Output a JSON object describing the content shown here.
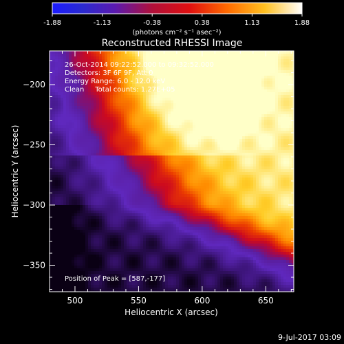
{
  "chart_data": {
    "type": "heatmap",
    "title": "Reconstructed RHESSI Image",
    "xlabel": "Heliocentric X (arcsec)",
    "ylabel": "Heliocentric Y (arcsec)",
    "xlim": [
      480,
      672
    ],
    "ylim": [
      -372,
      -172
    ],
    "x_ticks": [
      500,
      550,
      600,
      650
    ],
    "y_ticks": [
      -200,
      -250,
      -300,
      -350
    ],
    "colorbar": {
      "ticks": [
        "-1.88",
        "-1.13",
        "-0.38",
        "0.38",
        "1.13",
        "1.88"
      ],
      "range": [
        -1.88,
        1.88
      ],
      "unit_label": "(photons cm⁻² s⁻¹ asec⁻²)"
    },
    "annotations": {
      "time_range": "26-Oct-2014 09:22:52.000 to 09:32:52.000",
      "detectors": "Detectors: 3F 6F 9F, Att 0",
      "energy": "Energy Range: 6.0 - 12.0 keV",
      "clean": "Clean     Total counts: 1.27E+05",
      "peak": "Position of Peak = [587,-177]"
    },
    "footer_date": "9-Jul-2017 03:09",
    "peak_position": [
      587,
      -177
    ],
    "colormap": "rainbow-3 (black-purple-blue-red-orange-yellow-white)"
  }
}
